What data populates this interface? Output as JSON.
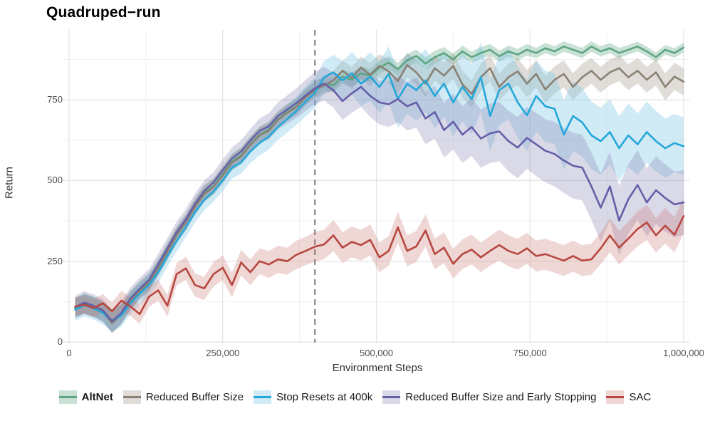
{
  "title": "Quadruped−run",
  "axes": {
    "x_label": "Environment Steps",
    "y_label": "Return",
    "x_ticks": [
      {
        "v": 0,
        "label": "0"
      },
      {
        "v": 250,
        "label": "250,000"
      },
      {
        "v": 500,
        "label": "500,000"
      },
      {
        "v": 750,
        "label": "750,000"
      },
      {
        "v": 1000,
        "label": "1,000,000"
      }
    ],
    "y_ticks": [
      {
        "v": 0,
        "label": "0"
      },
      {
        "v": 250,
        "label": "250"
      },
      {
        "v": 500,
        "label": "500"
      },
      {
        "v": 750,
        "label": "750"
      }
    ],
    "minor_x": [
      125,
      375,
      625,
      875
    ],
    "minor_y": [
      125,
      375,
      625,
      875
    ],
    "grid_major_color": "#e3e3e3",
    "grid_minor_color": "#f1f1f1"
  },
  "chart_data": {
    "type": "line",
    "title": "Quadruped−run",
    "xlabel": "Environment Steps",
    "ylabel": "Return",
    "x_units_note": "x values are environment steps in thousands",
    "xlim": [
      0,
      1000
    ],
    "ylim": [
      0,
      930
    ],
    "legend_position": "bottom",
    "grid": true,
    "vline": {
      "x": 400,
      "style": "dashed",
      "color": "#8a8a8a",
      "meaning": "Stop Resets at 400k marker"
    },
    "x": [
      10,
      25,
      40,
      55,
      70,
      85,
      100,
      115,
      130,
      145,
      160,
      175,
      190,
      205,
      220,
      235,
      250,
      265,
      280,
      295,
      310,
      325,
      340,
      355,
      370,
      385,
      400,
      415,
      430,
      445,
      460,
      475,
      490,
      505,
      520,
      535,
      550,
      565,
      580,
      595,
      610,
      625,
      640,
      655,
      670,
      685,
      700,
      715,
      730,
      745,
      760,
      775,
      790,
      805,
      820,
      835,
      850,
      865,
      880,
      895,
      910,
      925,
      940,
      955,
      970,
      985,
      1000
    ],
    "series": [
      {
        "id": "altnet",
        "name": "AltNet",
        "bold": true,
        "color": "#5fa583",
        "band_color": "rgba(95,165,131,0.33)",
        "values": [
          105,
          120,
          110,
          95,
          62,
          88,
          130,
          162,
          188,
          232,
          282,
          332,
          372,
          422,
          462,
          482,
          520,
          558,
          578,
          612,
          642,
          658,
          690,
          712,
          730,
          760,
          782,
          800,
          795,
          822,
          812,
          832,
          825,
          850,
          865,
          845,
          872,
          886,
          862,
          882,
          895,
          875,
          900,
          882,
          895,
          905,
          885,
          900,
          890,
          905,
          895,
          910,
          900,
          915,
          905,
          895,
          915,
          900,
          910,
          895,
          905,
          915,
          900,
          882,
          905,
          895,
          912
        ],
        "band": [
          30,
          30,
          30,
          30,
          32,
          30,
          28,
          26,
          26,
          25,
          25,
          25,
          25,
          25,
          25,
          25,
          25,
          25,
          25,
          25,
          25,
          25,
          25,
          25,
          25,
          25,
          24,
          22,
          22,
          22,
          22,
          22,
          20,
          20,
          20,
          20,
          20,
          20,
          20,
          20,
          18,
          18,
          18,
          18,
          18,
          18,
          18,
          18,
          18,
          18,
          16,
          16,
          16,
          16,
          16,
          16,
          16,
          16,
          16,
          16,
          15,
          15,
          15,
          15,
          15,
          15,
          15
        ]
      },
      {
        "id": "reduced-buffer-size",
        "name": "Reduced Buffer Size",
        "bold": false,
        "color": "#8a8173",
        "band_color": "rgba(151,144,130,0.30)",
        "values": [
          108,
          118,
          108,
          92,
          58,
          86,
          128,
          158,
          182,
          228,
          278,
          330,
          370,
          418,
          458,
          480,
          516,
          555,
          575,
          610,
          640,
          655,
          688,
          710,
          728,
          758,
          780,
          795,
          810,
          840,
          818,
          850,
          828,
          855,
          838,
          808,
          858,
          835,
          800,
          848,
          825,
          855,
          798,
          768,
          820,
          848,
          790,
          820,
          838,
          800,
          830,
          782,
          812,
          830,
          790,
          820,
          840,
          812,
          835,
          848,
          820,
          840,
          812,
          835,
          790,
          822,
          806
        ],
        "band": [
          30,
          30,
          30,
          30,
          32,
          30,
          28,
          26,
          26,
          25,
          25,
          25,
          25,
          25,
          25,
          25,
          25,
          25,
          25,
          25,
          25,
          25,
          25,
          25,
          25,
          25,
          26,
          28,
          30,
          32,
          34,
          34,
          36,
          36,
          38,
          38,
          38,
          38,
          40,
          40,
          40,
          40,
          42,
          42,
          42,
          42,
          42,
          42,
          42,
          42,
          42,
          42,
          42,
          42,
          42,
          42,
          40,
          40,
          40,
          40,
          40,
          40,
          40,
          40,
          42,
          42,
          42
        ]
      },
      {
        "id": "stop-resets-400k",
        "name": "Stop Resets at 400k",
        "bold": false,
        "color": "#24a7d9",
        "band_color": "rgba(122,199,230,0.35)",
        "values": [
          100,
          114,
          104,
          90,
          66,
          82,
          120,
          150,
          176,
          216,
          266,
          312,
          356,
          402,
          440,
          466,
          500,
          540,
          556,
          590,
          616,
          636,
          666,
          690,
          716,
          745,
          772,
          820,
          835,
          810,
          832,
          800,
          822,
          790,
          830,
          752,
          800,
          780,
          810,
          762,
          800,
          742,
          790,
          752,
          820,
          700,
          780,
          800,
          742,
          702,
          762,
          730,
          722,
          642,
          700,
          680,
          640,
          622,
          650,
          600,
          640,
          612,
          650,
          622,
          600,
          616,
          606
        ],
        "band": [
          35,
          35,
          35,
          35,
          35,
          35,
          34,
          34,
          33,
          33,
          32,
          32,
          32,
          32,
          32,
          32,
          33,
          34,
          35,
          36,
          38,
          40,
          40,
          42,
          44,
          46,
          48,
          50,
          55,
          60,
          65,
          70,
          75,
          80,
          85,
          90,
          92,
          95,
          98,
          100,
          102,
          104,
          106,
          108,
          108,
          110,
          110,
          110,
          110,
          110,
          110,
          110,
          110,
          108,
          108,
          106,
          105,
          104,
          102,
          100,
          98,
          96,
          95,
          94,
          92,
          90,
          90
        ]
      },
      {
        "id": "rbs-early-stopping",
        "name": "Reduced Buffer Size and Early Stopping",
        "bold": false,
        "color": "#665fa8",
        "band_color": "rgba(123,117,173,0.28)",
        "values": [
          108,
          122,
          112,
          98,
          64,
          90,
          135,
          165,
          192,
          240,
          290,
          340,
          380,
          428,
          468,
          494,
          532,
          568,
          590,
          624,
          654,
          668,
          700,
          720,
          740,
          764,
          786,
          800,
          780,
          746,
          770,
          790,
          762,
          742,
          736,
          752,
          730,
          742,
          692,
          712,
          656,
          682,
          642,
          666,
          630,
          646,
          652,
          622,
          602,
          632,
          612,
          592,
          582,
          562,
          546,
          540,
          482,
          416,
          482,
          376,
          442,
          486,
          432,
          470,
          446,
          426,
          432
        ],
        "band": [
          35,
          35,
          35,
          35,
          35,
          35,
          34,
          34,
          33,
          33,
          32,
          32,
          32,
          32,
          32,
          32,
          33,
          34,
          35,
          36,
          38,
          40,
          42,
          44,
          46,
          48,
          50,
          52,
          55,
          58,
          60,
          62,
          65,
          68,
          70,
          72,
          75,
          78,
          80,
          82,
          85,
          86,
          88,
          90,
          90,
          92,
          92,
          94,
          95,
          96,
          98,
          98,
          100,
          100,
          102,
          102,
          104,
          106,
          106,
          108,
          108,
          108,
          106,
          105,
          104,
          102,
          100
        ]
      },
      {
        "id": "sac",
        "name": "SAC",
        "bold": false,
        "color": "#b7473f",
        "band_color": "rgba(196,110,106,0.28)",
        "values": [
          110,
          115,
          105,
          120,
          95,
          128,
          110,
          86,
          140,
          160,
          112,
          210,
          228,
          176,
          166,
          210,
          230,
          176,
          246,
          216,
          250,
          240,
          256,
          250,
          270,
          282,
          295,
          302,
          330,
          292,
          310,
          300,
          316,
          262,
          282,
          355,
          282,
          296,
          345,
          272,
          292,
          242,
          272,
          286,
          262,
          282,
          300,
          282,
          272,
          290,
          266,
          272,
          262,
          252,
          266,
          252,
          256,
          290,
          330,
          292,
          320,
          350,
          370,
          330,
          360,
          332,
          390
        ],
        "band": [
          28,
          28,
          28,
          28,
          28,
          30,
          30,
          30,
          32,
          32,
          34,
          34,
          36,
          36,
          36,
          38,
          38,
          38,
          40,
          40,
          40,
          42,
          42,
          42,
          44,
          44,
          46,
          46,
          48,
          48,
          48,
          48,
          48,
          46,
          46,
          48,
          48,
          48,
          50,
          48,
          48,
          46,
          46,
          46,
          46,
          46,
          48,
          48,
          48,
          48,
          48,
          48,
          48,
          48,
          48,
          48,
          48,
          50,
          52,
          52,
          52,
          54,
          54,
          54,
          55,
          55,
          55
        ]
      }
    ]
  }
}
